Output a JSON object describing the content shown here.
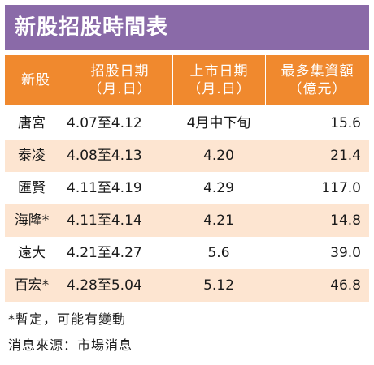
{
  "title": "新股招股時間表",
  "header": {
    "col1": "新股",
    "col2_line1": "招股日期",
    "col2_line2": "（月.日）",
    "col3_line1": "上市日期",
    "col3_line2": "（月.日）",
    "col4_line1": "最多集資額",
    "col4_line2": "（億元）"
  },
  "rows": [
    {
      "name": "唐宮",
      "offer": "4.07至4.12",
      "listing": "4月中下旬",
      "amount": "15.6"
    },
    {
      "name": "泰凌",
      "offer": "4.08至4.13",
      "listing": "4.20",
      "amount": "21.4"
    },
    {
      "name": "匯賢",
      "offer": "4.11至4.19",
      "listing": "4.29",
      "amount": "117.0"
    },
    {
      "name": "海隆*",
      "offer": "4.11至4.14",
      "listing": "4.21",
      "amount": "14.8"
    },
    {
      "name": "遠大",
      "offer": "4.21至4.27",
      "listing": "5.6",
      "amount": "39.0"
    },
    {
      "name": "百宏*",
      "offer": "4.28至5.04",
      "listing": "5.12",
      "amount": "46.8"
    }
  ],
  "footnote": "*暫定，可能有變動",
  "source": "消息來源：市場消息",
  "colors": {
    "title_bg": "#8a6aa8",
    "header_bg": "#f0892e",
    "alt_row_bg": "#fde5d1"
  }
}
